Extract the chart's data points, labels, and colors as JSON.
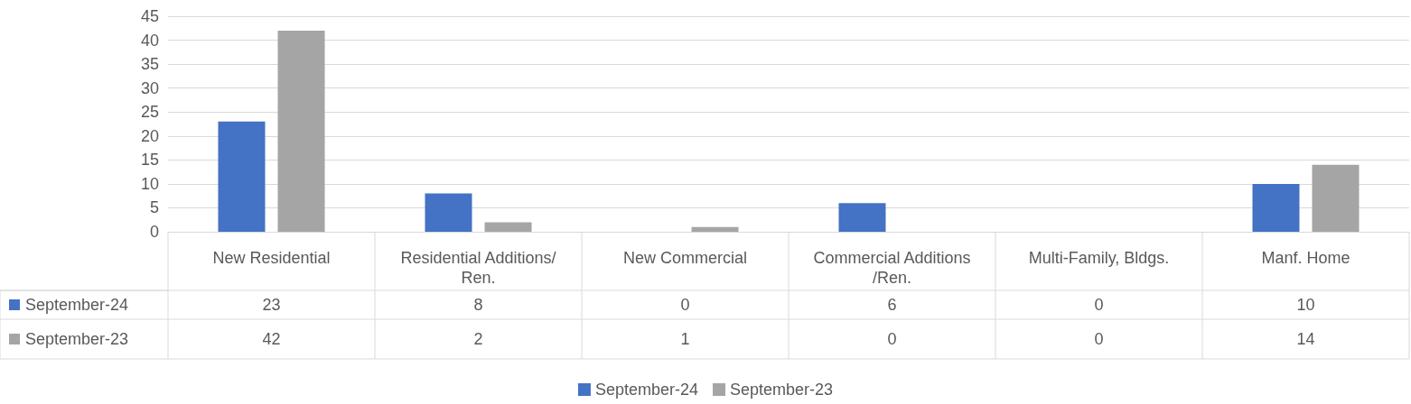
{
  "chart_data": {
    "type": "bar",
    "categories": [
      "New Residential",
      "Residential Additions/Ren.",
      "New Commercial",
      "Commercial Additions/Ren.",
      "Multi-Family, Bldgs.",
      "Manf. Home"
    ],
    "series": [
      {
        "name": "September-24",
        "color": "#4472c4",
        "values": [
          23,
          8,
          0,
          6,
          0,
          10
        ]
      },
      {
        "name": "September-23",
        "color": "#a5a5a5",
        "values": [
          42,
          2,
          1,
          0,
          0,
          14
        ]
      }
    ],
    "ylim": [
      0,
      45
    ],
    "yticks": [
      0,
      5,
      10,
      15,
      20,
      25,
      30,
      35,
      40,
      45
    ],
    "grid": "y",
    "legend": "bottom",
    "data_labels": true
  }
}
